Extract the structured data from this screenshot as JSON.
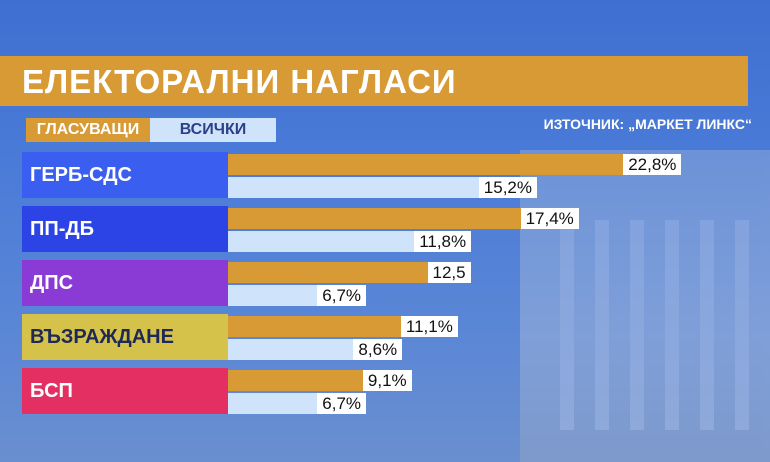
{
  "header": {
    "title": "ЕЛЕКТОРАЛНИ НАГЛАСИ",
    "source": "ИЗТОЧНИК: „МАРКЕТ ЛИНКС“"
  },
  "legend": {
    "voters": "ГЛАСУВАЩИ",
    "all": "ВСИЧКИ"
  },
  "colors": {
    "voters": "#d89a34",
    "all": "#cfe4fb"
  },
  "chart_data": {
    "type": "bar",
    "title": "ЕЛЕКТОРАЛНИ НАГЛАСИ",
    "categories": [
      "ГЕРБ-СДС",
      "ПП-ДБ",
      "ДПС",
      "ВЪЗРАЖДАНЕ",
      "БСП"
    ],
    "category_colors": [
      "#3a5ff0",
      "#2c44e6",
      "#8a3bd6",
      "#d4c24a",
      "#e32f62"
    ],
    "series": [
      {
        "name": "ГЛАСУВАЩИ",
        "values": [
          22.8,
          17.4,
          12.5,
          11.1,
          9.1
        ],
        "labels": [
          "22,8%",
          "17,4%",
          "12,5",
          "11,1%",
          "9,1%"
        ]
      },
      {
        "name": "ВСИЧКИ",
        "values": [
          15.2,
          11.8,
          6.7,
          8.6,
          6.7
        ],
        "labels": [
          "15,2%",
          "11,8%",
          "6,7%",
          "8,6%",
          "6,7%"
        ]
      }
    ]
  }
}
